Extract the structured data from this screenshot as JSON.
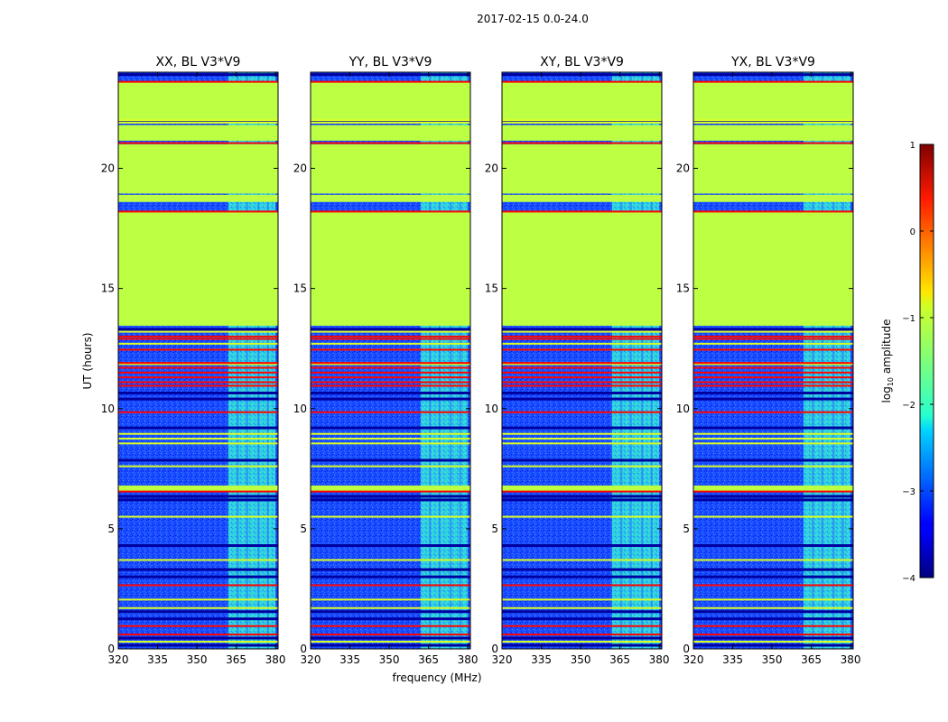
{
  "chart_data": {
    "type": "heatmap",
    "suptitle": "2017-02-15 0.0-24.0",
    "xlabel": "frequency (MHz)",
    "ylabel": "UT (hours)",
    "xlim": [
      320,
      381
    ],
    "ylim": [
      0,
      24
    ],
    "xticks": [
      320,
      335,
      350,
      365,
      380
    ],
    "yticks": [
      0,
      5,
      10,
      15,
      20
    ],
    "panels": [
      {
        "title": "XX, BL V3*V9"
      },
      {
        "title": "YY, BL V3*V9"
      },
      {
        "title": "XY, BL V3*V9"
      },
      {
        "title": "YX, BL V3*V9"
      }
    ],
    "colorbar": {
      "label_prefix": "log",
      "label_sub": "10",
      "label_suffix": " amplitude",
      "range": [
        -4,
        1
      ],
      "ticks": [
        "1",
        "0",
        "−1",
        "−2",
        "−3",
        "−4"
      ],
      "colormap": "jet"
    },
    "background_log_amplitude": -2.9,
    "rfi_band_mhz": [
      362,
      380
    ],
    "rfi_log_amplitude": -2.0,
    "flagged_ranges_hours": [
      [
        13.4,
        23.5
      ],
      [
        18.9,
        18.9
      ],
      [
        6.6,
        6.8
      ],
      [
        23.5,
        23.5
      ]
    ],
    "flagged_blocks_hours": [
      [
        13.45,
        18.2
      ],
      [
        18.6,
        18.9
      ],
      [
        18.95,
        21.0
      ],
      [
        21.15,
        21.8
      ],
      [
        22.0,
        23.6
      ],
      [
        6.55,
        6.8
      ]
    ],
    "flagged_log_amplitude": -1.2,
    "hot_lines_hours": [
      0.6,
      0.95,
      2.65,
      6.55,
      9.85,
      10.95,
      11.1,
      11.3,
      11.5,
      11.7,
      11.9,
      12.45,
      12.9,
      13.0,
      18.2,
      21.05,
      23.6
    ],
    "hot_log_amplitude": 0.35,
    "warm_lines_hours": [
      0.3,
      1.7,
      2.05,
      3.7,
      5.5,
      7.6,
      8.55,
      8.75,
      8.95,
      11.85,
      12.7,
      13.2,
      21.9,
      22.0
    ],
    "warm_log_amplitude": -1.05
  }
}
